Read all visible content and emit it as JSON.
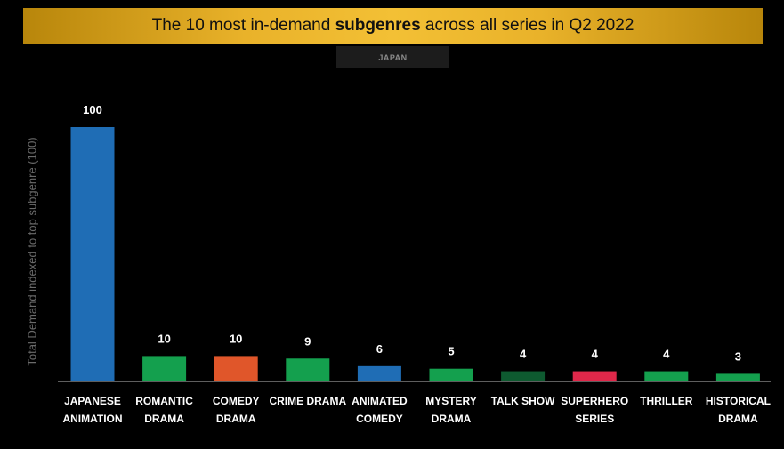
{
  "title": {
    "prefix": "The 10 most in-demand ",
    "emphasis": "subgenres",
    "suffix": " across all series in Q2 2022"
  },
  "country_tag": "JAPAN",
  "colors": {
    "background": "#000000",
    "banner_gold": "#f3c035",
    "anime_blue": "#1f6db5",
    "drama_green": "#14a04e",
    "comedy_orange": "#e0562a",
    "talk_dark_green": "#0e5a30",
    "superhero_red": "#e0284a"
  },
  "chart_data": {
    "type": "bar",
    "ylabel": "Total Demand indexed to top subgenre (100)",
    "ylim": [
      0,
      100
    ],
    "grid": false,
    "categories": [
      [
        "JAPANESE",
        "ANIMATION"
      ],
      [
        "ROMANTIC",
        "DRAMA"
      ],
      [
        "COMEDY",
        "DRAMA"
      ],
      [
        "CRIME DRAMA"
      ],
      [
        "ANIMATED",
        "COMEDY"
      ],
      [
        "MYSTERY",
        "DRAMA"
      ],
      [
        "TALK SHOW"
      ],
      [
        "SUPERHERO",
        "SERIES"
      ],
      [
        "THRILLER"
      ],
      [
        "HISTORICAL",
        "DRAMA"
      ]
    ],
    "values": [
      100,
      10,
      10,
      9,
      6,
      5,
      4,
      4,
      4,
      3
    ],
    "bar_colors": [
      "#1f6db5",
      "#14a04e",
      "#e0562a",
      "#14a04e",
      "#1f6db5",
      "#14a04e",
      "#0e5a30",
      "#e0284a",
      "#14a04e",
      "#14a04e"
    ]
  }
}
